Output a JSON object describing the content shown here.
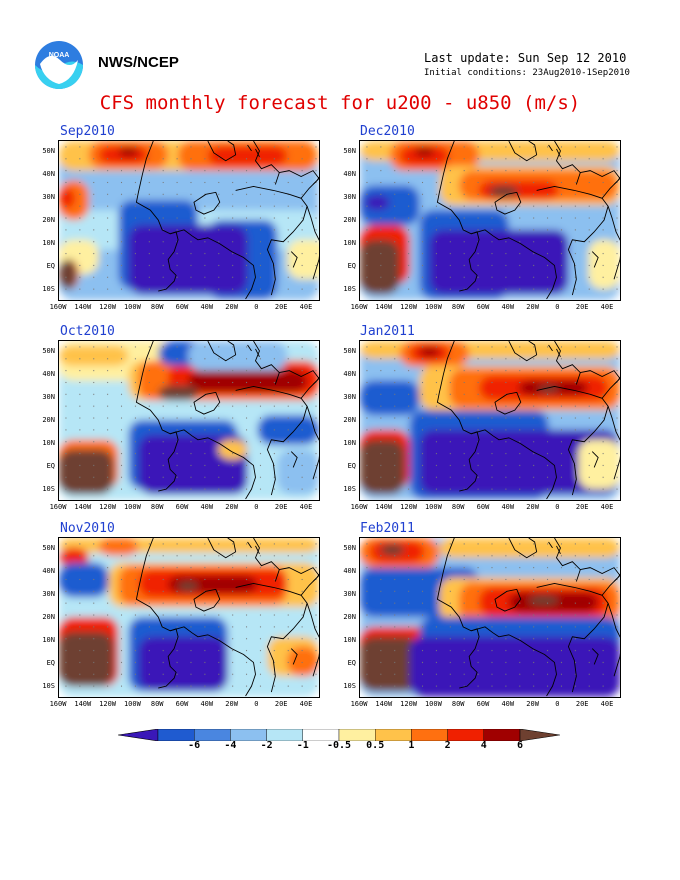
{
  "header": {
    "org": "NWS/NCEP",
    "last_update": "Last update: Sun Sep 12 2010",
    "initial_conditions": "Initial conditions: 23Aug2010-1Sep2010",
    "title": "CFS monthly forecast for u200 - u850 (m/s)"
  },
  "logo": {
    "text": "NOAA"
  },
  "panels": [
    {
      "title": "Sep2010"
    },
    {
      "title": "Dec2010"
    },
    {
      "title": "Oct2010"
    },
    {
      "title": "Jan2011"
    },
    {
      "title": "Nov2010"
    },
    {
      "title": "Feb2011"
    }
  ],
  "axes": {
    "lat_labels": [
      "50N",
      "40N",
      "30N",
      "20N",
      "10N",
      "EQ",
      "10S"
    ],
    "lon_labels": [
      "160W",
      "140W",
      "120W",
      "100W",
      "80W",
      "60W",
      "40W",
      "20W",
      "0",
      "20E",
      "40E"
    ]
  },
  "colorbar": {
    "labels": [
      "-6",
      "-4",
      "-2",
      "-1",
      "-0.5",
      "0.5",
      "1",
      "2",
      "4",
      "6"
    ],
    "colors": {
      "below_min": "#3a18b8",
      "b1": "#1f5bd0",
      "b2": "#4a86e0",
      "b3": "#8cc0f0",
      "b4": "#b6e6f6",
      "b5": "#ffffff",
      "b6": "#fff0a0",
      "b7": "#ffc24a",
      "b8": "#ff7010",
      "b9": "#f02000",
      "b10": "#a00000",
      "above_max": "#6e4030"
    }
  }
}
